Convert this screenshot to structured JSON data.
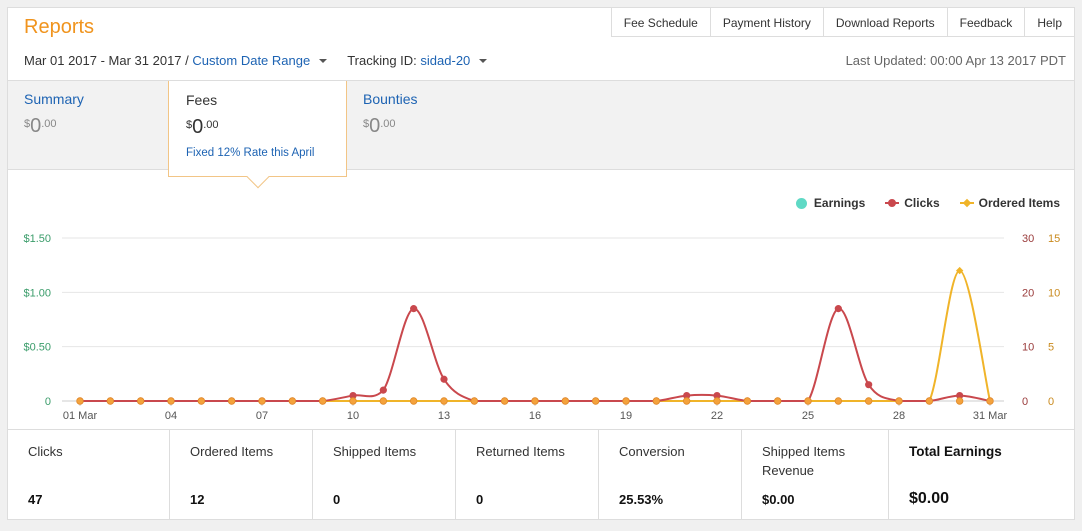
{
  "header": {
    "title": "Reports",
    "nav": [
      "Fee Schedule",
      "Payment History",
      "Download Reports",
      "Feedback",
      "Help"
    ]
  },
  "filters": {
    "date_range": "Mar 01 2017 - Mar 31 2017",
    "separator": "/",
    "custom_range_label": "Custom Date Range",
    "tracking_label": "Tracking ID:",
    "tracking_value": "sidad-20",
    "last_updated": "Last Updated: 00:00 Apr 13 2017 PDT"
  },
  "tabs": {
    "summary": {
      "label": "Summary",
      "currency": "$",
      "int": "0",
      "dec": ".00"
    },
    "fees": {
      "label": "Fees",
      "currency": "$",
      "int": "0",
      "dec": ".00",
      "note": "Fixed 12% Rate this April"
    },
    "bounties": {
      "label": "Bounties",
      "currency": "$",
      "int": "0",
      "dec": ".00"
    }
  },
  "legend": [
    "Earnings",
    "Clicks",
    "Ordered Items"
  ],
  "chart_data": {
    "type": "line",
    "x": [
      "01 Mar",
      "02",
      "03",
      "04",
      "05",
      "06",
      "07",
      "08",
      "09",
      "10",
      "11",
      "12",
      "13",
      "14",
      "15",
      "16",
      "17",
      "18",
      "19",
      "20",
      "21",
      "22",
      "23",
      "24",
      "25",
      "26",
      "27",
      "28",
      "29",
      "30",
      "31 Mar"
    ],
    "x_tick_labels": [
      "01 Mar",
      "04",
      "07",
      "10",
      "13",
      "16",
      "19",
      "22",
      "25",
      "28",
      "31 Mar"
    ],
    "series": [
      {
        "name": "Earnings",
        "axis": "left",
        "color": "#5fd9c5",
        "values": [
          0,
          0,
          0,
          0,
          0,
          0,
          0,
          0,
          0,
          0,
          0,
          0,
          0,
          0,
          0,
          0,
          0,
          0,
          0,
          0,
          0,
          0,
          0,
          0,
          0,
          0,
          0,
          0,
          0,
          0,
          0
        ]
      },
      {
        "name": "Clicks",
        "axis": "right1",
        "color": "#c9484d",
        "values": [
          0,
          0,
          0,
          0,
          0,
          0,
          0,
          0,
          0,
          1,
          2,
          17,
          4,
          0,
          0,
          0,
          0,
          0,
          0,
          0,
          1,
          1,
          0,
          0,
          0,
          17,
          3,
          0,
          0,
          1,
          0
        ]
      },
      {
        "name": "Ordered Items",
        "axis": "right2",
        "color": "#f0b429",
        "values": [
          0,
          0,
          0,
          0,
          0,
          0,
          0,
          0,
          0,
          0,
          0,
          0,
          0,
          0,
          0,
          0,
          0,
          0,
          0,
          0,
          0,
          0,
          0,
          0,
          0,
          0,
          0,
          0,
          0,
          12,
          0
        ]
      }
    ],
    "y_left": {
      "ticks": [
        "0",
        "$0.50",
        "$1.00",
        "$1.50"
      ],
      "range": [
        0,
        1.5
      ],
      "color": "#3a9c6a"
    },
    "y_right1": {
      "ticks": [
        "0",
        "10",
        "20",
        "30"
      ],
      "range": [
        0,
        30
      ],
      "color": "#9a3b3b"
    },
    "y_right2": {
      "ticks": [
        "0",
        "5",
        "10",
        "15"
      ],
      "range": [
        0,
        15
      ],
      "color": "#c98a1e"
    },
    "grid": true,
    "legend_position": "top-right"
  },
  "stats": [
    {
      "label": "Clicks",
      "value": "47"
    },
    {
      "label": "Ordered Items",
      "value": "12"
    },
    {
      "label": "Shipped Items",
      "value": "0"
    },
    {
      "label": "Returned Items",
      "value": "0"
    },
    {
      "label": "Conversion",
      "value": "25.53%"
    },
    {
      "label": "Shipped Items Revenue",
      "value": "$0.00"
    },
    {
      "label": "Total Earnings",
      "value": "$0.00"
    }
  ]
}
